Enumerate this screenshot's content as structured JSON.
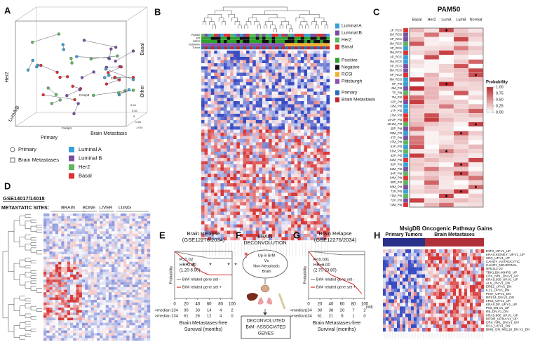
{
  "panel_a": {
    "letter": "A",
    "axes": {
      "basal": "Basal",
      "other": "Other",
      "her2": "Her2",
      "luma_b": "LumA/B",
      "primary": "Primary",
      "brain_metastasis": "Brain Metastasis",
      "comp1": "Comp1",
      "comp2": "Comp2",
      "comp3": "Comp3"
    },
    "ticks": [
      "0.04",
      "0.02",
      "0",
      "-0.02",
      "-0.04"
    ],
    "legend_shapes": [
      "Primary",
      "Brain Metastases"
    ],
    "legend_colors": [
      {
        "name": "Luminal A",
        "color": "#3aa0d8"
      },
      {
        "name": "Luminal B",
        "color": "#7b4fa0"
      },
      {
        "name": "Her2",
        "color": "#5cb85c"
      },
      {
        "name": "Basal",
        "color": "#e03030"
      }
    ]
  },
  "panel_b": {
    "letter": "B",
    "track_labels": [
      "PAM50",
      "ER",
      "HER2",
      "Institution",
      "Tumor"
    ],
    "legend": [
      {
        "name": "Luminal A",
        "color": "#3aa0d8"
      },
      {
        "name": "Luminal B",
        "color": "#7b4fa0"
      },
      {
        "name": "Her2",
        "color": "#5cb85c"
      },
      {
        "name": "Basal",
        "color": "#e03030"
      },
      {
        "name": "Positive",
        "color": "#2ca02c"
      },
      {
        "name": "Negative",
        "color": "#111111"
      },
      {
        "name": "RCSI",
        "color": "#f0b030"
      },
      {
        "name": "Pittsburgh",
        "color": "#8a4fb0"
      },
      {
        "name": "Primary",
        "color": "#2c6fb8"
      },
      {
        "name": "Brain Metastasis",
        "color": "#c0282d"
      }
    ],
    "stars": [
      "*",
      "*",
      "*",
      "*",
      "*",
      "*",
      "*"
    ]
  },
  "panel_c": {
    "letter": "C",
    "title": "PAM50",
    "columns": [
      "Basal",
      "Her2",
      "LumA",
      "LumB",
      "Normal"
    ],
    "rows": [
      "1P_RCS",
      "1M_RCS",
      "2P_RCS",
      "2M_RCS",
      "3P_RCS",
      "3M_RCS",
      "4P_RCS",
      "4M_RCS",
      "5P_RCS",
      "5M_RCS",
      "6P_RCS",
      "6M_RCS",
      "6P_Pitt",
      "6M_Pitt",
      "7P_Pitt",
      "7M_Pitt",
      "12P_Pitt",
      "12M_Pitt",
      "17P_Pitt",
      "17M_Pitt",
      "19-2P_Pitt",
      "19-2M_Pitt",
      "25P_Pitt",
      "25M_Pitt",
      "47P_Pitt",
      "47M_Pitt",
      "51P_Pitt",
      "51M_Pitt",
      "52P_Pitt",
      "52M_Pitt",
      "62P_Pitt",
      "62M_Pitt",
      "64P_Pitt",
      "64M_Pitt",
      "68P_Pitt",
      "68M_Pitt",
      "71P_Pitt",
      "71M_Pitt",
      "72P_Pitt",
      "72M_Pitt"
    ],
    "colorbar": {
      "label": "Probability",
      "lim": [
        0,
        1
      ],
      "colors": [
        "#ffffff",
        "#c0282d"
      ],
      "ticks": [
        {
          "value": 1,
          "label": "1.00"
        },
        {
          "value": 0.75,
          "label": "0.75"
        },
        {
          "value": 0.5,
          "label": "0.50"
        },
        {
          "value": 0.25,
          "label": "0.25"
        },
        {
          "value": 0,
          "label": "0.00"
        }
      ]
    }
  },
  "panel_d": {
    "letter": "D",
    "dataset": "GSE14017/14018",
    "sites_label": "METASTATIC SITES:",
    "sites": [
      "BRAIN",
      "BONE",
      "LIVER",
      "LUNG"
    ]
  },
  "panel_e": {
    "letter": "E",
    "title": [
      "Brain Relapse",
      "(GSE12276/2034)"
    ],
    "stats": [
      "P=0.02",
      "HR=2.80",
      "(1.20-6.90)"
    ],
    "y_label": "Probability",
    "xlim": [
      0,
      100
    ],
    "ylim": [
      0,
      1
    ],
    "xticks": [
      0,
      20,
      40,
      60,
      80,
      100
    ],
    "series": [
      {
        "name": "BrM related gene set -",
        "color": "#888888",
        "x": [
          0,
          10,
          20,
          30,
          40,
          50,
          60,
          100
        ],
        "y": [
          1,
          0.97,
          0.95,
          0.92,
          0.9,
          0.88,
          0.85,
          0.85
        ]
      },
      {
        "name": "BrM related gene set +",
        "color": "#d62728",
        "x": [
          0,
          10,
          20,
          30,
          40,
          50,
          60,
          100
        ],
        "y": [
          1,
          0.9,
          0.8,
          0.72,
          0.62,
          0.55,
          0.5,
          0.5
        ]
      }
    ],
    "risk_table": [
      {
        "label": "<median",
        "counts": [
          134,
          90,
          33,
          14,
          4,
          2
        ]
      },
      {
        "label": ">median",
        "counts": [
          134,
          61,
          26,
          12,
          4,
          0
        ]
      }
    ],
    "x_label": [
      "Brain Metastases-free",
      "Survival (months)"
    ]
  },
  "panel_f": {
    "letter": "F",
    "title": [
      "BRAIN",
      "DECONVOLUTION"
    ],
    "comparison": [
      "Up in BrM",
      "Vs",
      "Non-Neoplastic",
      "Brain"
    ],
    "result": [
      "DECONVOLUTED",
      "BrM- ASSOCIATED",
      "GENES"
    ]
  },
  "panel_g": {
    "letter": "G",
    "title": [
      "Brain Relapse",
      "(GSE12276/2034)"
    ],
    "stats": [
      "P<0.001",
      "HR=6.00",
      "(2.70-23.80)"
    ],
    "y_label": "Probability",
    "note": "padj",
    "xlim": [
      0,
      100
    ],
    "ylim": [
      0,
      1
    ],
    "xticks": [
      0,
      20,
      40,
      60,
      80,
      100
    ],
    "series": [
      {
        "name": "BrM related gene set -",
        "color": "#888888",
        "x": [
          0,
          20,
          40,
          60,
          100
        ],
        "y": [
          1,
          0.98,
          0.95,
          0.93,
          0.93
        ]
      },
      {
        "name": "BrM related gene set +",
        "color": "#d62728",
        "x": [
          0,
          10,
          20,
          30,
          40,
          50,
          60,
          80,
          95
        ],
        "y": [
          1,
          0.85,
          0.7,
          0.6,
          0.5,
          0.45,
          0.4,
          0.3,
          0.1
        ]
      }
    ],
    "risk_table": [
      {
        "label": "<median",
        "counts": [
          134,
          90,
          38,
          20,
          7,
          2
        ]
      },
      {
        "label": ">median",
        "counts": [
          134,
          61,
          21,
          8,
          1,
          0
        ]
      }
    ],
    "x_label": [
      "Brain Metastases-free",
      "Survival (months)"
    ]
  },
  "panel_h": {
    "letter": "H",
    "title": "MsigDB Oncogenic Pathway Gains",
    "groups": [
      "Primary Tumors",
      "Brain Metastases"
    ],
    "gene_sets": [
      "E2F3_UP.V1_UP",
      "KRAS.KIDNEY_UP.V1_UP",
      "SRC_UP.V1_UP",
      "CAHOY_ASTROCYTIC",
      "CAHOY_NEURONAL",
      "NFE2L2.V2",
      "TBK1.DN.48HRS_UP",
      "CRX_NRL_DN.V1_UP",
      "KRAS.300_UP.V1_UP",
      "ALK_DN.V1_DN",
      "ERB2_UP.V1_DN",
      "IL21_UP.V1_DN",
      "PIGF_UP.V1_DN",
      "RPS14_DN.V1_DN",
      "LTE2_UP.V1_UP",
      "KRAS.DF_UP.V1_UP",
      "P53_DN.V1_UP",
      "RB_DN.V1_DN",
      "KRAS.600_UP.V1_UP",
      "MTOR_UP.N4.V1_UP",
      "CRX_NRL_DN.V1_DN",
      "DCA_UP.V1_DN",
      "BMI1_DN_MEL18_DN.V1_DN"
    ]
  }
}
